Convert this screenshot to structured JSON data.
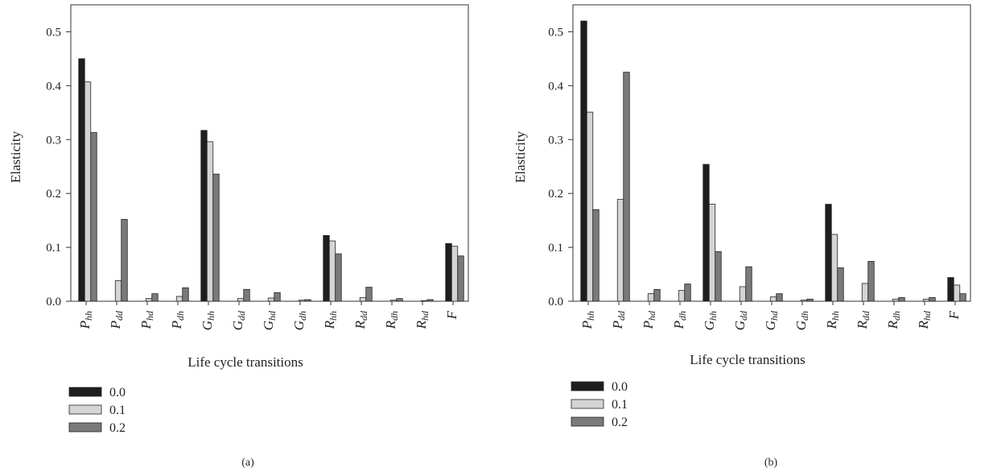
{
  "chart_data": [
    {
      "type": "bar",
      "panel_label": "(a)",
      "xlabel": "Life cycle transitions",
      "ylabel": "Elasticity",
      "ylim": [
        0,
        0.55
      ],
      "yticks": [
        "0.0",
        "0.1",
        "0.2",
        "0.3",
        "0.4",
        "0.5"
      ],
      "categories": [
        {
          "main": "P",
          "sub": "hh"
        },
        {
          "main": "P",
          "sub": "dd"
        },
        {
          "main": "P",
          "sub": "hd"
        },
        {
          "main": "P",
          "sub": "dh"
        },
        {
          "main": "G",
          "sub": "hh"
        },
        {
          "main": "G",
          "sub": "dd"
        },
        {
          "main": "G",
          "sub": "hd"
        },
        {
          "main": "G",
          "sub": "dh"
        },
        {
          "main": "R",
          "sub": "hh"
        },
        {
          "main": "R",
          "sub": "dd"
        },
        {
          "main": "R",
          "sub": "dh"
        },
        {
          "main": "R",
          "sub": "hd"
        },
        {
          "main": "F",
          "sub": ""
        }
      ],
      "series": [
        {
          "name": "0.0",
          "color": "#1e1e1e",
          "values": [
            0.45,
            0.0,
            0.0,
            0.0,
            0.317,
            0.0,
            0.0,
            0.0,
            0.122,
            0.0,
            0.0,
            0.0,
            0.107
          ]
        },
        {
          "name": "0.1",
          "color": "#d4d4d4",
          "values": [
            0.407,
            0.038,
            0.005,
            0.009,
            0.296,
            0.005,
            0.006,
            0.002,
            0.112,
            0.007,
            0.002,
            0.001,
            0.102
          ]
        },
        {
          "name": "0.2",
          "color": "#7a7a7a",
          "values": [
            0.313,
            0.152,
            0.014,
            0.025,
            0.236,
            0.022,
            0.016,
            0.003,
            0.088,
            0.026,
            0.005,
            0.003,
            0.084
          ]
        }
      ]
    },
    {
      "type": "bar",
      "panel_label": "(b)",
      "xlabel": "Life cycle transitions",
      "ylabel": "Elasticity",
      "ylim": [
        0,
        0.55
      ],
      "yticks": [
        "0.0",
        "0.1",
        "0.2",
        "0.3",
        "0.4",
        "0.5"
      ],
      "categories": [
        {
          "main": "P",
          "sub": "hh"
        },
        {
          "main": "P",
          "sub": "dd"
        },
        {
          "main": "P",
          "sub": "hd"
        },
        {
          "main": "P",
          "sub": "dh"
        },
        {
          "main": "G",
          "sub": "hh"
        },
        {
          "main": "G",
          "sub": "dd"
        },
        {
          "main": "G",
          "sub": "hd"
        },
        {
          "main": "G",
          "sub": "dh"
        },
        {
          "main": "R",
          "sub": "hh"
        },
        {
          "main": "R",
          "sub": "dd"
        },
        {
          "main": "R",
          "sub": "dh"
        },
        {
          "main": "R",
          "sub": "hd"
        },
        {
          "main": "F",
          "sub": ""
        }
      ],
      "series": [
        {
          "name": "0.0",
          "color": "#1e1e1e",
          "values": [
            0.52,
            0.0,
            0.0,
            0.0,
            0.254,
            0.0,
            0.0,
            0.0,
            0.18,
            0.0,
            0.0,
            0.0,
            0.044
          ]
        },
        {
          "name": "0.1",
          "color": "#d4d4d4",
          "values": [
            0.351,
            0.189,
            0.014,
            0.02,
            0.18,
            0.027,
            0.008,
            0.002,
            0.124,
            0.033,
            0.004,
            0.004,
            0.03
          ]
        },
        {
          "name": "0.2",
          "color": "#7a7a7a",
          "values": [
            0.17,
            0.425,
            0.022,
            0.032,
            0.092,
            0.064,
            0.014,
            0.004,
            0.062,
            0.074,
            0.007,
            0.007,
            0.014
          ]
        }
      ]
    }
  ]
}
